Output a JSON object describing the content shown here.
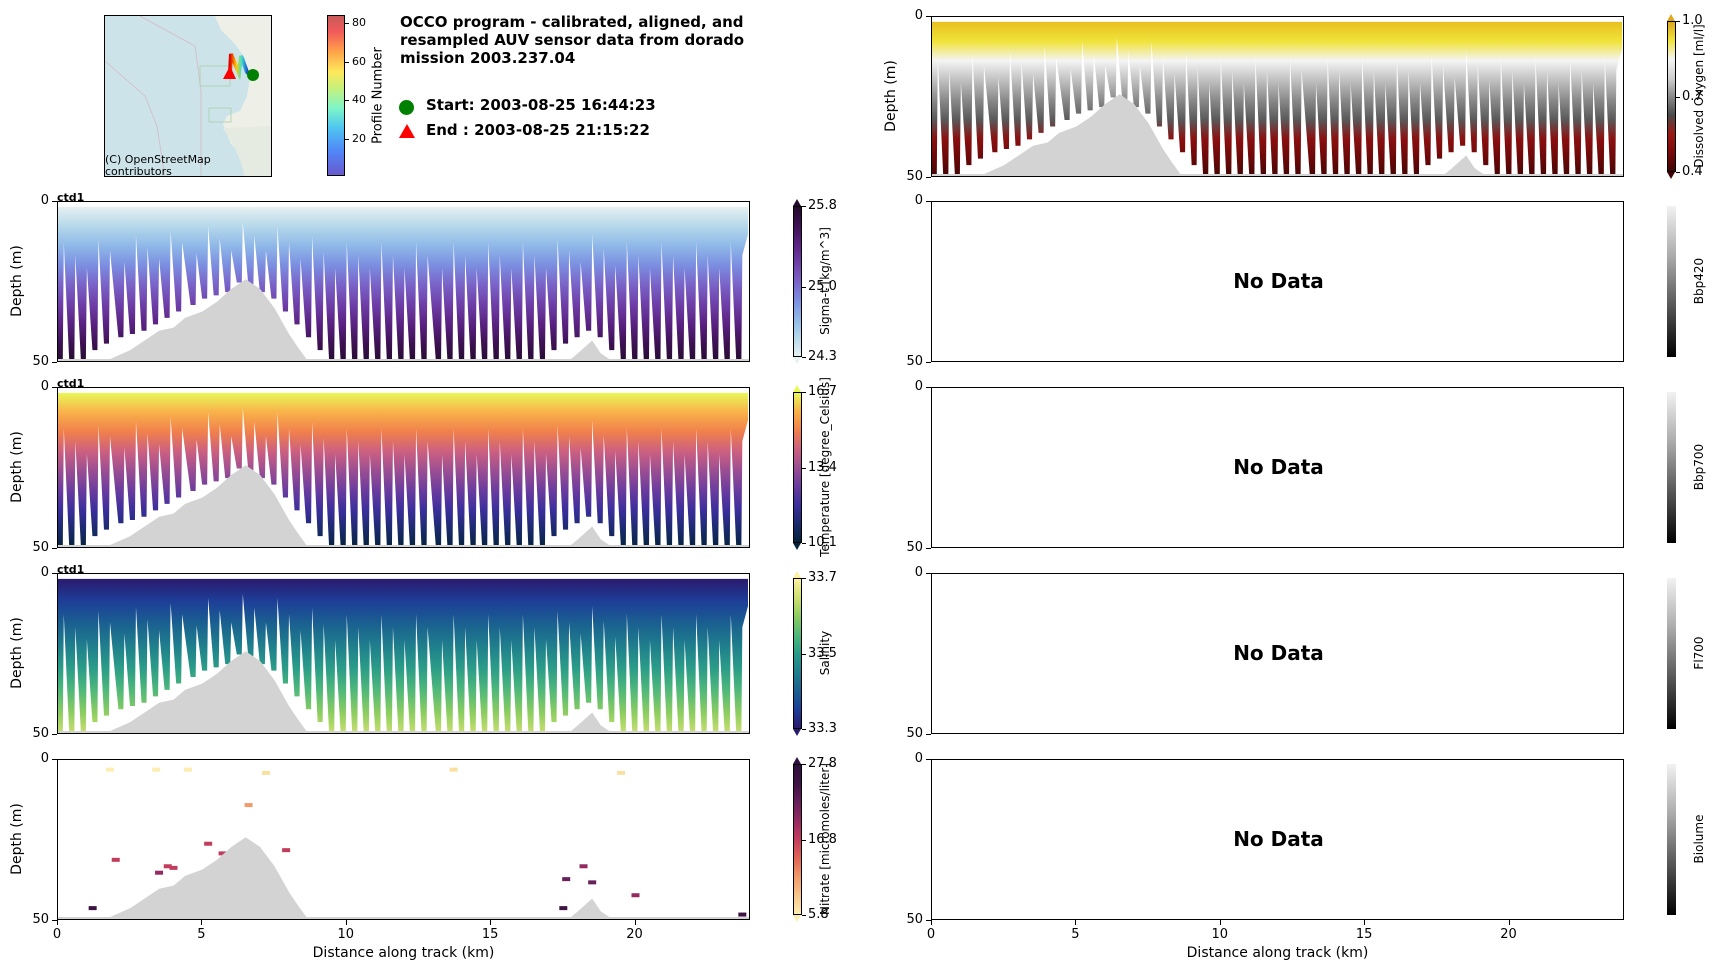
{
  "figure": {
    "title": "OCCO program - calibrated, aligned, and resampled AUV sensor data from dorado mission 2003.237.04",
    "title_lines": [
      "OCCO program - calibrated, aligned, and",
      "resampled AUV sensor data from dorado",
      "mission 2003.237.04"
    ],
    "legend": {
      "start": {
        "marker": "green-circle",
        "color": "#008000",
        "label": "Start: 2003-08-25 16:44:23"
      },
      "end": {
        "marker": "red-triangle",
        "color": "#ff0000",
        "label": "End  : 2003-08-25 21:15:22"
      }
    },
    "map": {
      "attribution_line1": "(C) OpenStreetMap",
      "attribution_line2": "contributors",
      "water_color": "#cde3ea",
      "land_color": "#eef0e8"
    },
    "profile_colorbar": {
      "label": "Profile Number",
      "ticks": [
        "80",
        "60",
        "40",
        "20"
      ],
      "tick_values": [
        80,
        60,
        40,
        20
      ],
      "range": [
        1,
        84
      ]
    }
  },
  "chart_data": [
    {
      "type": "heatmap",
      "id": "sigma_t",
      "panel": "left-1",
      "annotation": "ctd1",
      "title": "",
      "xlabel": "",
      "ylabel": "Depth (m)",
      "xlim": [
        0,
        24
      ],
      "ylim": [
        50,
        0
      ],
      "yticks": [
        "0",
        "50"
      ],
      "colorbar": {
        "label": "Sigma-t [kg/m^3]",
        "ticks": [
          "25.8",
          "25.0",
          "24.3"
        ],
        "tick_values": [
          25.8,
          25.0,
          24.3
        ],
        "range": [
          24.3,
          25.8
        ],
        "colormap": "dense",
        "extend": "both"
      },
      "description": "Low sigma-t (~24.3) near surface 0-5 m, increasing to ~25.8 at depth; yo-yo profile sawtooth pattern; bathymetry mound near 4-8 km and 18.5 km"
    },
    {
      "type": "heatmap",
      "id": "temperature",
      "panel": "left-2",
      "annotation": "ctd1",
      "xlabel": "",
      "ylabel": "Depth (m)",
      "xlim": [
        0,
        24
      ],
      "ylim": [
        50,
        0
      ],
      "yticks": [
        "0",
        "50"
      ],
      "colorbar": {
        "label": "Temperature [degree_Celsius]",
        "ticks": [
          "16.7",
          "13.4",
          "10.1"
        ],
        "tick_values": [
          16.7,
          13.4,
          10.1
        ],
        "range": [
          10.1,
          16.7
        ],
        "colormap": "thermal",
        "extend": "both"
      },
      "description": "Warm (~16 C) surface water, warmest near 15-17 km; cold (~10 C) at depth"
    },
    {
      "type": "heatmap",
      "id": "salinity",
      "panel": "left-3",
      "annotation": "ctd1",
      "xlabel": "",
      "ylabel": "Depth (m)",
      "xlim": [
        0,
        24
      ],
      "ylim": [
        50,
        0
      ],
      "yticks": [
        "0",
        "50"
      ],
      "colorbar": {
        "label": "Salinity",
        "ticks": [
          "33.7",
          "33.5",
          "33.3"
        ],
        "tick_values": [
          33.7,
          33.5,
          33.3
        ],
        "range": [
          33.3,
          33.7
        ],
        "colormap": "haline",
        "extend": "both"
      },
      "description": "Fresher (~33.3) near surface, saltier (~33.7) at depth; anomalous salty streak near 12 km"
    },
    {
      "type": "heatmap",
      "id": "nitrate",
      "panel": "left-4",
      "xlabel": "Distance along track (km)",
      "ylabel": "Depth (m)",
      "xlim": [
        0,
        24
      ],
      "ylim": [
        50,
        0
      ],
      "xticks": [
        "0",
        "5",
        "10",
        "15",
        "20"
      ],
      "xtick_values": [
        0,
        5,
        10,
        15,
        20
      ],
      "yticks": [
        "0",
        "50"
      ],
      "colorbar": {
        "label": "Nitrate [micromoles/liter]",
        "ticks": [
          "27.8",
          "16.8",
          "5.8"
        ],
        "tick_values": [
          27.8,
          16.8,
          5.8
        ],
        "range": [
          5.8,
          27.8
        ],
        "colormap": "matter",
        "extend": "both"
      },
      "description": "Sparse nitrate samples; low values near surface, higher values (~20-28) at 25-50 m depth"
    },
    {
      "type": "heatmap",
      "id": "dissolved_oxygen",
      "panel": "right-0",
      "xlabel": "",
      "ylabel": "Depth (m)",
      "xlim": [
        0,
        24
      ],
      "ylim": [
        50,
        0
      ],
      "yticks": [
        "0",
        "50"
      ],
      "colorbar": {
        "label": "Dissolved Oxygen [ml/l]",
        "ticks": [
          "1.0",
          "0.7",
          "0.4"
        ],
        "tick_values": [
          1.0,
          0.7,
          0.4
        ],
        "range": [
          0.4,
          1.0
        ],
        "colormap": "oxy",
        "extend": "both"
      },
      "description": "High oxygen (~1.0, yellow) in top ~10 m, grey mid-range, low oxygen (~0.4, dark red) below ~35 m"
    },
    {
      "type": "heatmap",
      "id": "bbp420",
      "panel": "right-1",
      "ylabel": "",
      "xlim": [
        0,
        24
      ],
      "ylim": [
        50,
        0
      ],
      "yticks": [
        "0",
        "50"
      ],
      "no_data": "No Data",
      "colorbar": {
        "label": "Bbp420",
        "ticks": [],
        "colormap": "gray"
      }
    },
    {
      "type": "heatmap",
      "id": "bbp700",
      "panel": "right-2",
      "ylabel": "",
      "xlim": [
        0,
        24
      ],
      "ylim": [
        50,
        0
      ],
      "yticks": [
        "0",
        "50"
      ],
      "no_data": "No Data",
      "colorbar": {
        "label": "Bbp700",
        "ticks": [],
        "colormap": "gray"
      }
    },
    {
      "type": "heatmap",
      "id": "fl700",
      "panel": "right-3",
      "ylabel": "",
      "xlim": [
        0,
        24
      ],
      "ylim": [
        50,
        0
      ],
      "yticks": [
        "0",
        "50"
      ],
      "no_data": "No Data",
      "colorbar": {
        "label": "Fl700",
        "ticks": [],
        "colormap": "gray"
      }
    },
    {
      "type": "heatmap",
      "id": "biolume",
      "panel": "right-4",
      "xlabel": "Distance along track (km)",
      "ylabel": "",
      "xlim": [
        0,
        24
      ],
      "ylim": [
        50,
        0
      ],
      "xticks": [
        "0",
        "5",
        "10",
        "15",
        "20"
      ],
      "xtick_values": [
        0,
        5,
        10,
        15,
        20
      ],
      "yticks": [
        "0",
        "50"
      ],
      "no_data": "No Data",
      "colorbar": {
        "label": "Biolume",
        "ticks": [],
        "colormap": "gray"
      }
    }
  ],
  "bathymetry_profile": {
    "description": "Seafloor depth (m) along track shown as light grey fill",
    "color": "#d3d3d3",
    "distance_km": [
      0,
      1.5,
      2.0,
      2.5,
      3.0,
      3.5,
      4.0,
      4.4,
      5.0,
      5.5,
      6.0,
      6.5,
      7.0,
      7.5,
      8.0,
      8.3,
      8.7,
      9.0,
      17.6,
      18.0,
      18.5,
      18.8,
      19.3,
      24
    ],
    "depth_m": [
      50,
      50,
      48,
      46,
      43,
      40,
      39,
      36,
      34,
      31,
      27,
      24,
      27,
      33,
      41,
      45,
      50,
      50,
      50,
      47,
      43,
      47,
      50,
      50
    ]
  },
  "profile_track": {
    "description": "AUV yo-yo depth profiles: bottom turnaround depth for each dive (m)",
    "distance_km": [
      0.2,
      0.6,
      1.0,
      1.4,
      1.8,
      2.3,
      2.7,
      3.1,
      3.5,
      3.9,
      4.3,
      4.8,
      5.2,
      5.6,
      6.0,
      6.4,
      6.8,
      7.2,
      7.6,
      8.0,
      8.4,
      8.8,
      9.2,
      9.6,
      10.0,
      10.4,
      10.8,
      11.2,
      11.6,
      12.0,
      12.4,
      12.8,
      13.3,
      13.7,
      14.1,
      14.5,
      14.9,
      15.3,
      15.7,
      16.1,
      16.5,
      16.9,
      17.3,
      17.7,
      18.1,
      18.5,
      18.9,
      19.3,
      19.7,
      20.1,
      20.5,
      20.9,
      21.3,
      21.7,
      22.1,
      22.5,
      22.9,
      23.3,
      23.7
    ],
    "turn_depth_m": [
      50,
      50,
      49,
      46,
      44,
      42,
      41,
      40,
      38,
      36,
      34,
      32,
      30,
      29,
      28,
      25,
      26,
      28,
      30,
      34,
      38,
      42,
      46,
      50,
      50,
      50,
      50,
      50,
      50,
      50,
      50,
      50,
      50,
      50,
      50,
      50,
      50,
      50,
      50,
      50,
      50,
      49,
      46,
      44,
      42,
      40,
      42,
      46,
      49,
      50,
      50,
      50,
      50,
      50,
      50,
      50,
      50,
      50,
      50
    ]
  }
}
